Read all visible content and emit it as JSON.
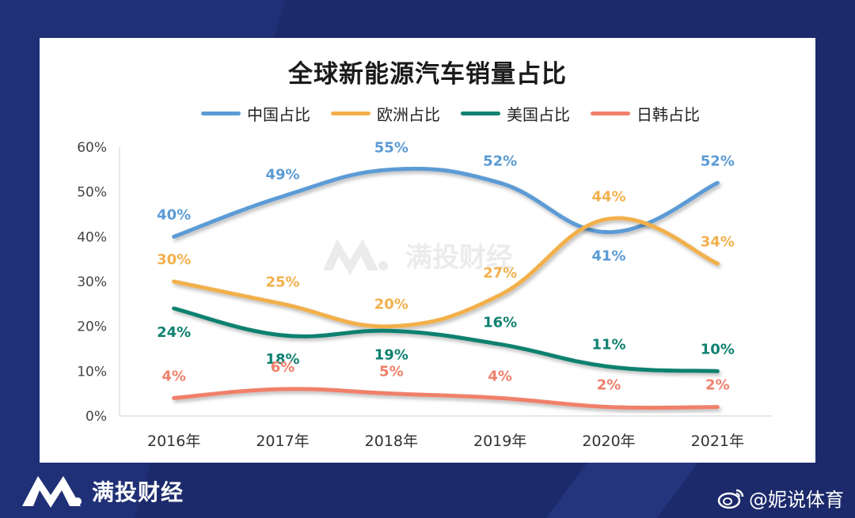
{
  "watermark": {
    "brand": "满投财经"
  },
  "footer": {
    "brand": "满投财经",
    "credit": "@妮说体育"
  },
  "colors": {
    "background": "#1c2a6b",
    "china": "#5b9bd5",
    "europe": "#f2b04c",
    "usa": "#0f8170",
    "japan_korea": "#f0806a"
  },
  "chart_data": {
    "type": "line",
    "title": "全球新能源汽车销量占比",
    "xlabel": "",
    "ylabel": "",
    "categories": [
      "2016年",
      "2017年",
      "2018年",
      "2019年",
      "2020年",
      "2021年"
    ],
    "ylim": [
      0,
      60
    ],
    "yticks": [
      "0%",
      "10%",
      "20%",
      "30%",
      "40%",
      "50%",
      "60%"
    ],
    "legend_position": "top",
    "grid": false,
    "series": [
      {
        "name": "中国占比",
        "color": "#5b9bd5",
        "values": [
          40,
          49,
          55,
          52,
          41,
          52
        ],
        "labels": [
          "40%",
          "49%",
          "55%",
          "52%",
          "41%",
          "52%"
        ]
      },
      {
        "name": "欧洲占比",
        "color": "#f2b04c",
        "values": [
          30,
          25,
          20,
          27,
          44,
          34
        ],
        "labels": [
          "30%",
          "25%",
          "20%",
          "27%",
          "44%",
          "34%"
        ]
      },
      {
        "name": "美国占比",
        "color": "#0f8170",
        "values": [
          24,
          18,
          19,
          16,
          11,
          10
        ],
        "labels": [
          "24%",
          "18%",
          "19%",
          "16%",
          "11%",
          "10%"
        ]
      },
      {
        "name": "日韩占比",
        "color": "#f0806a",
        "values": [
          4,
          6,
          5,
          4,
          2,
          2
        ],
        "labels": [
          "4%",
          "6%",
          "5%",
          "4%",
          "2%",
          "2%"
        ]
      }
    ]
  }
}
